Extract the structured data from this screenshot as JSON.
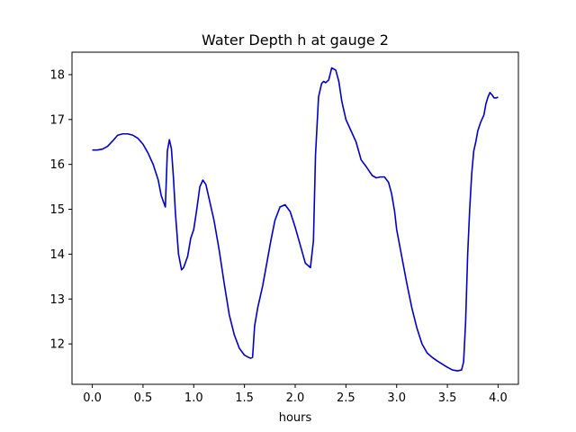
{
  "chart_data": {
    "type": "line",
    "title": "Water Depth h at gauge 2",
    "xlabel": "hours",
    "ylabel": "",
    "xlim": [
      -0.2,
      4.2
    ],
    "ylim": [
      11.1,
      18.5
    ],
    "xticks": [
      0.0,
      0.5,
      1.0,
      1.5,
      2.0,
      2.5,
      3.0,
      3.5,
      4.0
    ],
    "xtick_labels": [
      "0.0",
      "0.5",
      "1.0",
      "1.5",
      "2.0",
      "2.5",
      "3.0",
      "3.5",
      "4.0"
    ],
    "yticks": [
      12,
      13,
      14,
      15,
      16,
      17,
      18
    ],
    "ytick_labels": [
      "12",
      "13",
      "14",
      "15",
      "16",
      "17",
      "18"
    ],
    "grid": false,
    "legend": "none",
    "series": [
      {
        "color": "#0000cc",
        "x": [
          0.0,
          0.05,
          0.1,
          0.15,
          0.2,
          0.25,
          0.3,
          0.35,
          0.4,
          0.45,
          0.5,
          0.55,
          0.6,
          0.65,
          0.68,
          0.72,
          0.74,
          0.76,
          0.78,
          0.8,
          0.82,
          0.85,
          0.88,
          0.9,
          0.94,
          0.97,
          1.0,
          1.03,
          1.06,
          1.09,
          1.12,
          1.15,
          1.2,
          1.25,
          1.3,
          1.35,
          1.4,
          1.45,
          1.5,
          1.54,
          1.56,
          1.58,
          1.6,
          1.63,
          1.68,
          1.72,
          1.76,
          1.8,
          1.85,
          1.9,
          1.95,
          2.0,
          2.05,
          2.1,
          2.15,
          2.18,
          2.2,
          2.23,
          2.26,
          2.28,
          2.3,
          2.33,
          2.36,
          2.4,
          2.43,
          2.46,
          2.5,
          2.55,
          2.6,
          2.65,
          2.7,
          2.73,
          2.76,
          2.8,
          2.84,
          2.88,
          2.92,
          2.95,
          2.98,
          3.0,
          3.05,
          3.1,
          3.15,
          3.2,
          3.25,
          3.3,
          3.35,
          3.4,
          3.45,
          3.5,
          3.55,
          3.6,
          3.64,
          3.66,
          3.68,
          3.7,
          3.72,
          3.74,
          3.76,
          3.78,
          3.8,
          3.83,
          3.86,
          3.88,
          3.9,
          3.92,
          3.94,
          3.96,
          3.98,
          4.0
        ],
        "y": [
          16.32,
          16.32,
          16.34,
          16.4,
          16.52,
          16.65,
          16.68,
          16.68,
          16.65,
          16.58,
          16.45,
          16.25,
          16.0,
          15.65,
          15.3,
          15.05,
          16.3,
          16.55,
          16.35,
          15.7,
          14.9,
          14.0,
          13.65,
          13.7,
          13.95,
          14.35,
          14.55,
          15.0,
          15.5,
          15.65,
          15.55,
          15.25,
          14.75,
          14.1,
          13.35,
          12.65,
          12.2,
          11.9,
          11.75,
          11.7,
          11.68,
          11.7,
          12.4,
          12.8,
          13.3,
          13.8,
          14.3,
          14.75,
          15.05,
          15.1,
          14.95,
          14.6,
          14.2,
          13.8,
          13.7,
          14.3,
          16.2,
          17.5,
          17.8,
          17.85,
          17.82,
          17.88,
          18.15,
          18.1,
          17.85,
          17.4,
          17.0,
          16.75,
          16.5,
          16.1,
          15.95,
          15.85,
          15.75,
          15.7,
          15.72,
          15.72,
          15.6,
          15.35,
          14.95,
          14.55,
          13.95,
          13.35,
          12.8,
          12.35,
          12.0,
          11.8,
          11.7,
          11.62,
          11.55,
          11.48,
          11.42,
          11.4,
          11.42,
          11.6,
          12.5,
          14.0,
          15.0,
          15.8,
          16.3,
          16.5,
          16.75,
          16.95,
          17.1,
          17.35,
          17.5,
          17.6,
          17.55,
          17.48,
          17.48,
          17.5
        ]
      }
    ]
  }
}
